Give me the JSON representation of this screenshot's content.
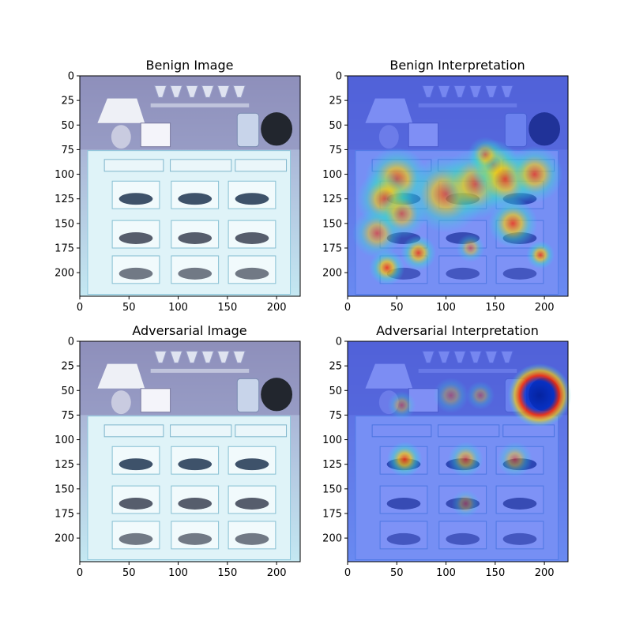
{
  "chart_data": [
    {
      "type": "image",
      "title": "Benign Image",
      "xlim": [
        0,
        224
      ],
      "ylim": [
        224,
        0
      ],
      "xticks": [
        0,
        50,
        100,
        150,
        200
      ],
      "yticks": [
        0,
        25,
        50,
        75,
        100,
        125,
        150,
        175,
        200
      ],
      "heatmap": false,
      "hotspots": []
    },
    {
      "type": "heatmap",
      "title": "Benign Interpretation",
      "xlim": [
        0,
        224
      ],
      "ylim": [
        224,
        0
      ],
      "xticks": [
        0,
        50,
        100,
        150,
        200
      ],
      "yticks": [
        0,
        25,
        50,
        75,
        100,
        125,
        150,
        175,
        200
      ],
      "heatmap": true,
      "hotspots": [
        {
          "x": 50,
          "y": 105,
          "r": 18,
          "level": 0.9
        },
        {
          "x": 38,
          "y": 125,
          "r": 16,
          "level": 0.85
        },
        {
          "x": 30,
          "y": 160,
          "r": 14,
          "level": 0.7
        },
        {
          "x": 55,
          "y": 140,
          "r": 14,
          "level": 0.7
        },
        {
          "x": 40,
          "y": 195,
          "r": 10,
          "level": 0.95
        },
        {
          "x": 72,
          "y": 180,
          "r": 10,
          "level": 0.9
        },
        {
          "x": 100,
          "y": 120,
          "r": 22,
          "level": 0.85
        },
        {
          "x": 130,
          "y": 110,
          "r": 20,
          "level": 0.8
        },
        {
          "x": 148,
          "y": 90,
          "r": 14,
          "level": 0.85
        },
        {
          "x": 160,
          "y": 105,
          "r": 18,
          "level": 0.9
        },
        {
          "x": 190,
          "y": 100,
          "r": 16,
          "level": 0.85
        },
        {
          "x": 168,
          "y": 150,
          "r": 14,
          "level": 0.9
        },
        {
          "x": 196,
          "y": 182,
          "r": 8,
          "level": 0.9
        },
        {
          "x": 125,
          "y": 175,
          "r": 8,
          "level": 0.6
        },
        {
          "x": 140,
          "y": 80,
          "r": 10,
          "level": 0.6
        }
      ]
    },
    {
      "type": "image",
      "title": "Adversarial Image",
      "xlim": [
        0,
        224
      ],
      "ylim": [
        224,
        0
      ],
      "xticks": [
        0,
        50,
        100,
        150,
        200
      ],
      "yticks": [
        0,
        25,
        50,
        75,
        100,
        125,
        150,
        175,
        200
      ],
      "heatmap": false,
      "hotspots": []
    },
    {
      "type": "heatmap",
      "title": "Adversarial Interpretation",
      "xlim": [
        0,
        224
      ],
      "ylim": [
        224,
        0
      ],
      "xticks": [
        0,
        50,
        100,
        150,
        200
      ],
      "yticks": [
        0,
        25,
        50,
        75,
        100,
        125,
        150,
        175,
        200
      ],
      "heatmap": true,
      "hotspots": [
        {
          "x": 195,
          "y": 55,
          "r": 18,
          "level": 0.95
        },
        {
          "x": 58,
          "y": 120,
          "r": 10,
          "level": 0.95
        },
        {
          "x": 120,
          "y": 120,
          "r": 10,
          "level": 0.7
        },
        {
          "x": 170,
          "y": 120,
          "r": 10,
          "level": 0.6
        },
        {
          "x": 55,
          "y": 65,
          "r": 8,
          "level": 0.5
        },
        {
          "x": 105,
          "y": 55,
          "r": 10,
          "level": 0.45
        },
        {
          "x": 135,
          "y": 55,
          "r": 8,
          "level": 0.45
        },
        {
          "x": 120,
          "y": 165,
          "r": 8,
          "level": 0.45
        }
      ]
    }
  ]
}
